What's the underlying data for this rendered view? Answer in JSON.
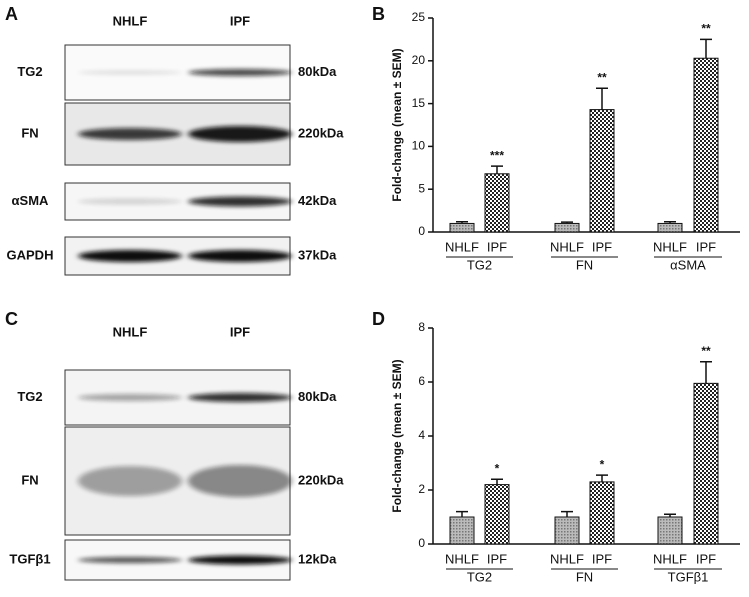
{
  "panels": [
    {
      "label": "A",
      "columns": [
        "NHLF",
        "IPF"
      ],
      "rows": [
        {
          "name": "TG2",
          "size": "80kDa"
        },
        {
          "name": "FN",
          "size": "220kDa"
        },
        {
          "name": "αSMA",
          "size": "42kDa"
        },
        {
          "name": "GAPDH",
          "size": "37kDa"
        }
      ]
    },
    {
      "label": "C",
      "columns": [
        "NHLF",
        "IPF"
      ],
      "rows": [
        {
          "name": "TG2",
          "size": "80kDa"
        },
        {
          "name": "FN",
          "size": "220kDa"
        },
        {
          "name": "TGFβ1",
          "size": "12kDa"
        }
      ]
    }
  ],
  "chart_data": [
    {
      "type": "bar",
      "label": "B",
      "ylabel": "Fold-change (mean ± SEM)",
      "ylim": [
        0,
        25
      ],
      "yticks": [
        0,
        5,
        10,
        15,
        20,
        25
      ],
      "groups": [
        {
          "name": "TG2",
          "categories": [
            "NHLF",
            "IPF"
          ],
          "values": [
            1.0,
            6.8
          ],
          "errors": [
            0.2,
            0.9
          ],
          "annotations": [
            null,
            "***"
          ]
        },
        {
          "name": "FN",
          "categories": [
            "NHLF",
            "IPF"
          ],
          "values": [
            1.0,
            14.3
          ],
          "errors": [
            0.15,
            2.5
          ],
          "annotations": [
            null,
            "**"
          ]
        },
        {
          "name": "αSMA",
          "categories": [
            "NHLF",
            "IPF"
          ],
          "values": [
            1.0,
            20.3
          ],
          "errors": [
            0.2,
            2.2
          ],
          "annotations": [
            null,
            "**"
          ]
        }
      ]
    },
    {
      "type": "bar",
      "label": "D",
      "ylabel": "Fold-change (mean ± SEM)",
      "ylim": [
        0,
        8
      ],
      "yticks": [
        0,
        2,
        4,
        6,
        8
      ],
      "groups": [
        {
          "name": "TG2",
          "categories": [
            "NHLF",
            "IPF"
          ],
          "values": [
            1.0,
            2.2
          ],
          "errors": [
            0.2,
            0.2
          ],
          "annotations": [
            null,
            "*"
          ]
        },
        {
          "name": "FN",
          "categories": [
            "NHLF",
            "IPF"
          ],
          "values": [
            1.0,
            2.3
          ],
          "errors": [
            0.2,
            0.25
          ],
          "annotations": [
            null,
            "*"
          ]
        },
        {
          "name": "TGFβ1",
          "categories": [
            "NHLF",
            "IPF"
          ],
          "values": [
            1.0,
            5.95
          ],
          "errors": [
            0.1,
            0.8
          ],
          "annotations": [
            null,
            "**"
          ]
        }
      ]
    }
  ]
}
